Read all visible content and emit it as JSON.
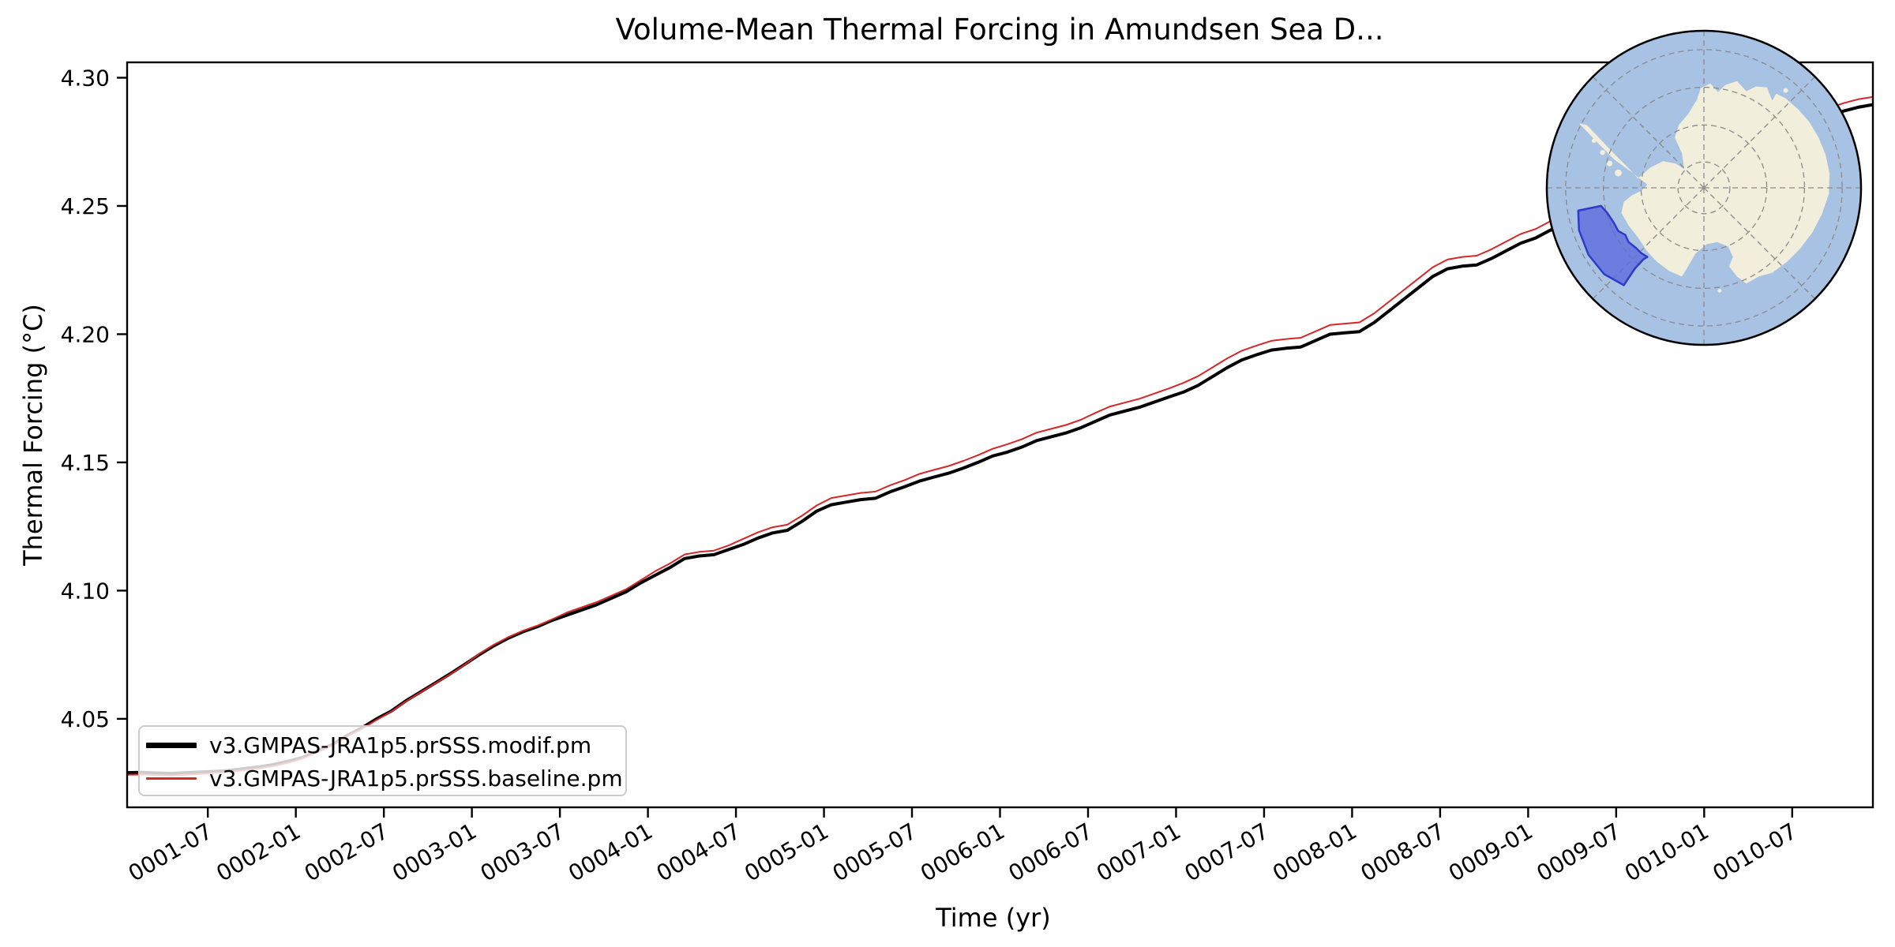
{
  "title": "Volume-Mean Thermal Forcing in Amundsen Sea D...",
  "colors": {
    "series_modif": "#000000",
    "series_baseline": "#d62728",
    "axis": "#000000",
    "legend_border": "#cccccc",
    "map_ocean": "#a8c2e4",
    "map_land": "#f1eedb",
    "map_region_fill": "#5a66de",
    "map_region_border": "#2e3bc8",
    "map_graticule": "#8a8a8a",
    "map_rim": "#000000"
  },
  "chart_data": {
    "type": "line",
    "title": "Volume-Mean Thermal Forcing in Amundsen Sea D...",
    "xlabel": "Time (yr)",
    "ylabel": "Thermal Forcing (°C)",
    "legend_location": "lower left",
    "grid": false,
    "x_unit": "months since 0001-01, data monthly at mid-month from 0001-01 to 0010-12",
    "xlim_months": [
      0.5,
      119.5
    ],
    "ylim": [
      4.0155,
      4.306
    ],
    "x_tick_months": [
      6,
      12,
      18,
      24,
      30,
      36,
      42,
      48,
      54,
      60,
      66,
      72,
      78,
      84,
      90,
      96,
      102,
      108,
      114
    ],
    "x_tick_labels": [
      "0001-07",
      "0002-01",
      "0002-07",
      "0003-01",
      "0003-07",
      "0004-01",
      "0004-07",
      "0005-01",
      "0005-07",
      "0006-01",
      "0006-07",
      "0007-01",
      "0007-07",
      "0008-01",
      "0008-07",
      "0009-01",
      "0009-07",
      "0010-01",
      "0010-07"
    ],
    "x_tick_rotation_deg": 30,
    "y_tick_values": [
      4.3,
      4.25,
      4.2,
      4.15,
      4.1,
      4.05
    ],
    "y_tick_labels": [
      "4.30",
      "4.25",
      "4.20",
      "4.15",
      "4.10",
      "4.05"
    ],
    "series": [
      {
        "name": "v3.GMPAS-JRA1p5.prSSS.modif.pm",
        "color": "#000000",
        "linewidth": 4,
        "values": [
          4.029,
          4.0291,
          4.0289,
          4.0287,
          4.029,
          4.0293,
          4.0295,
          4.0299,
          4.0306,
          4.0313,
          4.0322,
          4.0335,
          4.035,
          4.0375,
          4.04,
          4.0435,
          4.0465,
          4.05,
          4.053,
          4.057,
          4.0605,
          4.064,
          4.0675,
          4.0712,
          4.075,
          4.0785,
          4.0815,
          4.084,
          4.086,
          4.0885,
          4.0905,
          4.0925,
          4.0945,
          4.097,
          4.0995,
          4.103,
          4.106,
          4.109,
          4.1125,
          4.1135,
          4.114,
          4.116,
          4.118,
          4.1205,
          4.1225,
          4.1235,
          4.127,
          4.131,
          4.1335,
          4.1345,
          4.1355,
          4.136,
          4.1385,
          4.1405,
          4.1427,
          4.1443,
          4.1458,
          4.1478,
          4.15,
          4.1525,
          4.154,
          4.156,
          4.1585,
          4.16,
          4.1615,
          4.1635,
          4.166,
          4.1685,
          4.17,
          4.1715,
          4.1735,
          4.1755,
          4.1774,
          4.18,
          4.1835,
          4.187,
          4.19,
          4.192,
          4.1938,
          4.1945,
          4.195,
          4.1975,
          4.2,
          4.2005,
          4.201,
          4.2045,
          4.209,
          4.2135,
          4.218,
          4.2225,
          4.2255,
          4.2265,
          4.227,
          4.2295,
          4.2325,
          4.2355,
          4.2375,
          4.2405,
          4.2425,
          4.2445,
          4.2465,
          4.249,
          4.2515,
          4.254,
          4.2565,
          4.259,
          4.2615,
          4.2635,
          4.2655,
          4.268,
          4.2705,
          4.273,
          4.2755,
          4.278,
          4.2805,
          4.283,
          4.285,
          4.287,
          4.2885,
          4.2895
        ]
      },
      {
        "name": "v3.GMPAS-JRA1p5.prSSS.baseline.pm",
        "color": "#d62728",
        "linewidth": 2,
        "values": [
          4.0282,
          4.0283,
          4.0281,
          4.0279,
          4.0282,
          4.0285,
          4.0289,
          4.0293,
          4.03,
          4.0307,
          4.0316,
          4.0329,
          4.0346,
          4.0371,
          4.0396,
          4.0431,
          4.0461,
          4.0496,
          4.0528,
          4.0568,
          4.0603,
          4.0638,
          4.0673,
          4.071,
          4.0754,
          4.0789,
          4.0819,
          4.0844,
          4.0864,
          4.0889,
          4.0915,
          4.0935,
          4.0955,
          4.098,
          4.1005,
          4.104,
          4.1076,
          4.1106,
          4.1141,
          4.1151,
          4.1156,
          4.1176,
          4.1202,
          4.1227,
          4.1247,
          4.1257,
          4.1292,
          4.1332,
          4.1361,
          4.1371,
          4.1381,
          4.1386,
          4.1411,
          4.1431,
          4.1455,
          4.1471,
          4.1486,
          4.1506,
          4.1528,
          4.1553,
          4.1571,
          4.1591,
          4.1616,
          4.1631,
          4.1646,
          4.1666,
          4.1693,
          4.1718,
          4.1733,
          4.1748,
          4.1768,
          4.1788,
          4.181,
          4.1836,
          4.1871,
          4.1906,
          4.1936,
          4.1956,
          4.1974,
          4.1981,
          4.1986,
          4.2011,
          4.2036,
          4.2041,
          4.2046,
          4.2081,
          4.2126,
          4.2171,
          4.2216,
          4.2261,
          4.2291,
          4.2301,
          4.2306,
          4.2331,
          4.2361,
          4.2391,
          4.241,
          4.244,
          4.246,
          4.248,
          4.25,
          4.2525,
          4.255,
          4.2575,
          4.26,
          4.2625,
          4.265,
          4.267,
          4.2688,
          4.2713,
          4.2738,
          4.2763,
          4.2788,
          4.2813,
          4.2836,
          4.2861,
          4.2881,
          4.2901,
          4.2916,
          4.2925
        ]
      }
    ],
    "inset_map": {
      "projection": "south polar stereographic",
      "highlighted_region": "Amundsen Sea sector"
    }
  }
}
